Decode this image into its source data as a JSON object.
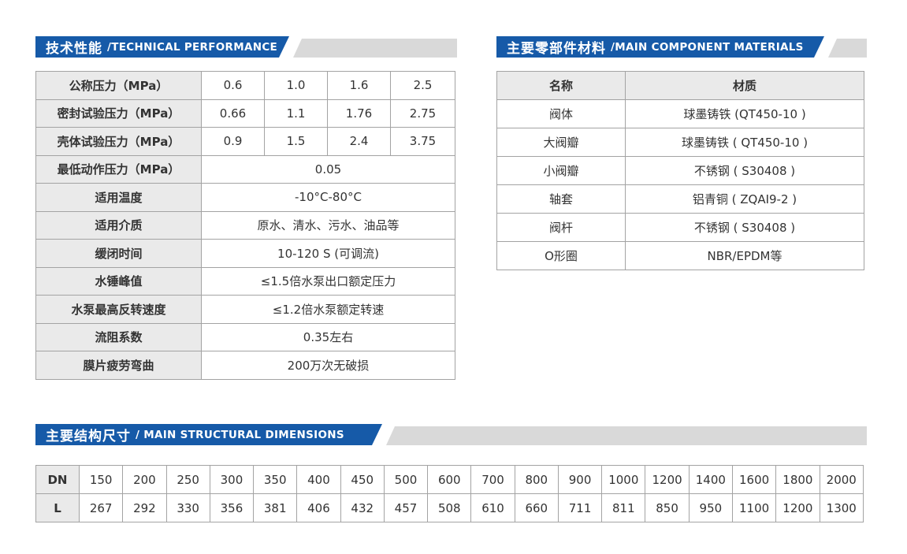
{
  "colors": {
    "accent_blue": "#165aa8",
    "banner_gray": "#d9d9d9",
    "label_cell_bg": "#eaeaea",
    "cell_border": "#a3a3a3",
    "text": "#333333"
  },
  "sections": {
    "technical_performance": {
      "title_zh": "技术性能",
      "title_en": "/TECHNICAL PERFORMANCE",
      "rows": [
        {
          "label": "公称压力（MPa）",
          "values": [
            "0.6",
            "1.0",
            "1.6",
            "2.5"
          ]
        },
        {
          "label": "密封试验压力（MPa）",
          "values": [
            "0.66",
            "1.1",
            "1.76",
            "2.75"
          ]
        },
        {
          "label": "壳体试验压力（MPa）",
          "values": [
            "0.9",
            "1.5",
            "2.4",
            "3.75"
          ]
        },
        {
          "label": "最低动作压力（MPa）",
          "values": [
            "0.05"
          ]
        },
        {
          "label": "适用温度",
          "values": [
            "-10°C-80°C"
          ]
        },
        {
          "label": "适用介质",
          "values": [
            "原水、清水、污水、油品等"
          ]
        },
        {
          "label": "缓闭时间",
          "values": [
            "10-120 S (可调流)"
          ]
        },
        {
          "label": "水锤峰值",
          "values": [
            "≤1.5倍水泵出口额定压力"
          ]
        },
        {
          "label": "水泵最高反转速度",
          "values": [
            "≤1.2倍水泵额定转速"
          ]
        },
        {
          "label": "流阻系数",
          "values": [
            "0.35左右"
          ]
        },
        {
          "label": "膜片疲劳弯曲",
          "values": [
            "200万次无破损"
          ]
        }
      ]
    },
    "component_materials": {
      "title_zh": "主要零部件材料",
      "title_en": "/MAIN COMPONENT MATERIALS",
      "columns": [
        "名称",
        "材质"
      ],
      "rows": [
        {
          "name": "阀体",
          "material": "球墨铸铁 (QT450-10 )"
        },
        {
          "name": "大阀瓣",
          "material": "球墨铸铁 ( QT450-10 )"
        },
        {
          "name": "小阀瓣",
          "material": "不锈钢 ( S30408 )"
        },
        {
          "name": "轴套",
          "material": "铝青铜 ( ZQAI9-2 )"
        },
        {
          "name": "阀杆",
          "material": "不锈钢 ( S30408 )"
        },
        {
          "name": "O形圈",
          "material": "NBR/EPDM等"
        }
      ]
    },
    "structural_dimensions": {
      "title_zh": "主要结构尺寸",
      "title_en": "/ MAIN STRUCTURAL DIMENSIONS",
      "row_headers": [
        "DN",
        "L"
      ],
      "dn": [
        "150",
        "200",
        "250",
        "300",
        "350",
        "400",
        "450",
        "500",
        "600",
        "700",
        "800",
        "900",
        "1000",
        "1200",
        "1400",
        "1600",
        "1800",
        "2000"
      ],
      "l": [
        "267",
        "292",
        "330",
        "356",
        "381",
        "406",
        "432",
        "457",
        "508",
        "610",
        "660",
        "711",
        "811",
        "850",
        "950",
        "1100",
        "1200",
        "1300"
      ]
    }
  }
}
